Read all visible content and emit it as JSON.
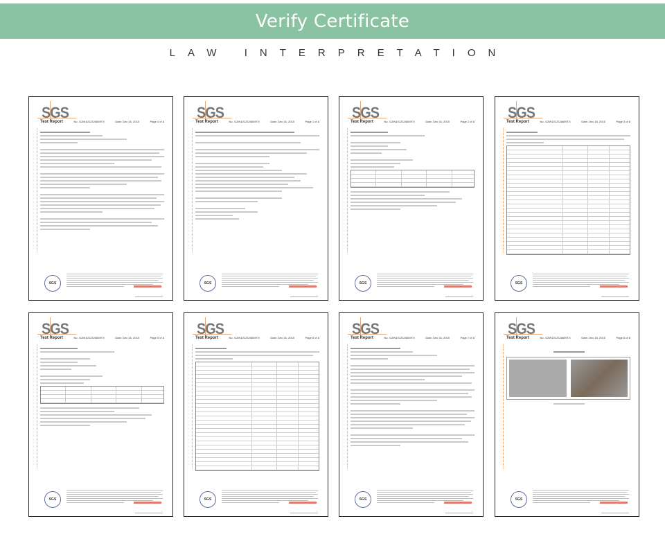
{
  "banner": {
    "title": "Verify Certificate",
    "color": "#8ac2a4"
  },
  "subtitle": "LAW INTERPRETATION",
  "certificates": [
    {
      "logo": "SGS",
      "title": "Test Report",
      "number": "No. GZIN1012126659TX",
      "date": "Date: Dec 18, 2015",
      "page": "Page 4 of 8",
      "kind": "notes"
    },
    {
      "logo": "SGS",
      "title": "Test Report",
      "number": "No. GZIN1012126659TX",
      "date": "Date: Dec 18, 2015",
      "page": "Page 1 of 8",
      "kind": "cover"
    },
    {
      "logo": "SGS",
      "title": "Test Report",
      "number": "No. GZIN1012126659TX",
      "date": "Date: Dec 18, 2015",
      "page": "Page 2 of 8",
      "kind": "results"
    },
    {
      "logo": "SGS",
      "title": "Test Report",
      "number": "No. GZIN1012126659TX",
      "date": "Date: Dec 18, 2015",
      "page": "Page 3 of 8",
      "kind": "table"
    },
    {
      "logo": "SGS",
      "title": "Test Report",
      "number": "No. GZIN1012126659TX",
      "date": "Date: Dec 18, 2015",
      "page": "Page 5 of 8",
      "kind": "results"
    },
    {
      "logo": "SGS",
      "title": "Test Report",
      "number": "No. GZIN1012126659TX",
      "date": "Date: Dec 18, 2015",
      "page": "Page 6 of 8",
      "kind": "table"
    },
    {
      "logo": "SGS",
      "title": "Test Report",
      "number": "No. GZIN1012126659TX",
      "date": "Date: Dec 18, 2015",
      "page": "Page 7 of 8",
      "kind": "notes"
    },
    {
      "logo": "SGS",
      "title": "Test Report",
      "number": "No. GZIN1012126659TX",
      "date": "Date: Dec 18, 2015",
      "page": "Page 8 of 8",
      "kind": "photo"
    }
  ]
}
